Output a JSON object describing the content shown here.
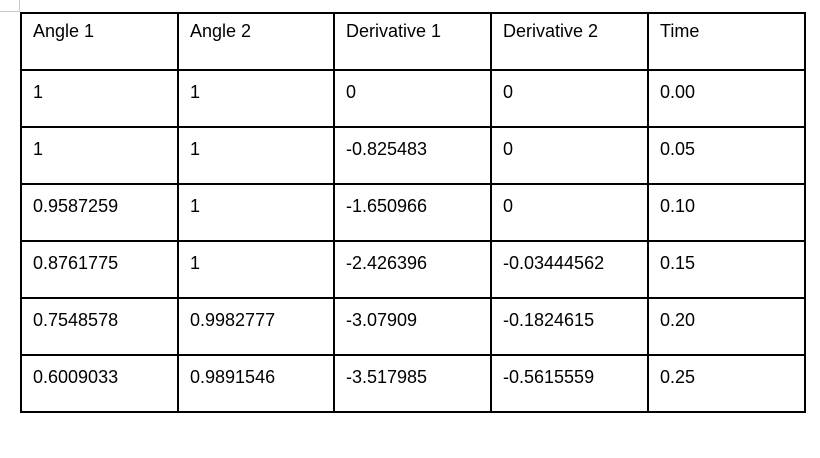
{
  "table": {
    "headers": [
      "Angle 1",
      "Angle 2",
      "Derivative 1",
      "Derivative 2",
      "Time"
    ],
    "rows": [
      [
        "1",
        "1",
        "0",
        "0",
        "0.00"
      ],
      [
        "1",
        "1",
        "-0.825483",
        "0",
        "0.05"
      ],
      [
        "0.9587259",
        "1",
        "-1.650966",
        "0",
        "0.10"
      ],
      [
        "0.8761775",
        "1",
        "-2.426396",
        "-0.03444562",
        "0.15"
      ],
      [
        "0.7548578",
        "0.9982777",
        "-3.07909",
        "-0.1824615",
        "0.20"
      ],
      [
        "0.6009033",
        "0.9891546",
        "-3.517985",
        "-0.5615559",
        "0.25"
      ]
    ]
  }
}
